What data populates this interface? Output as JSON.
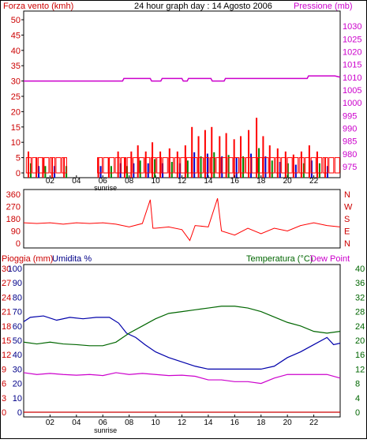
{
  "header": {
    "title": "24 hour graph day : 14 Agosto 2006",
    "left_label": "Forza vento (kmh)",
    "right_label": "Pressione (mb)"
  },
  "hour_ticks": [
    "02",
    "04",
    "06",
    "08",
    "10",
    "12",
    "14",
    "16",
    "18",
    "20",
    "22"
  ],
  "sunrise_label": "sunrise",
  "colors": {
    "wind": "#ff0000",
    "gust_blue": "#0000cc",
    "gust_green": "#008800",
    "pressure": "#cc00cc",
    "temperature": "#006600",
    "humidity": "#0000aa",
    "dewpoint": "#cc00cc",
    "rain": "#cc0000",
    "axis_left": "#000088",
    "frame": "#000000"
  },
  "chart_data": [
    {
      "type": "bar",
      "name": "wind",
      "x_unit": "hour",
      "xlim": [
        0,
        24
      ],
      "ylim": [
        0,
        50
      ],
      "yticks_left": [
        0,
        5,
        10,
        15,
        20,
        25,
        30,
        35,
        40,
        45,
        50
      ],
      "yticks_right": [
        975,
        980,
        985,
        990,
        995,
        1000,
        1005,
        1010,
        1015,
        1020,
        1025,
        1030
      ],
      "ylim_right": [
        972.5,
        1032.5
      ],
      "wind_peaks": [
        {
          "x": 0.3,
          "y": 7
        },
        {
          "x": 0.9,
          "y": 5
        },
        {
          "x": 1.4,
          "y": 5
        },
        {
          "x": 2.1,
          "y": 5
        },
        {
          "x": 3.0,
          "y": 5
        },
        {
          "x": 5.6,
          "y": 5
        },
        {
          "x": 6.4,
          "y": 5
        },
        {
          "x": 7.1,
          "y": 7
        },
        {
          "x": 7.6,
          "y": 5
        },
        {
          "x": 8.1,
          "y": 7
        },
        {
          "x": 8.6,
          "y": 9
        },
        {
          "x": 9.2,
          "y": 7
        },
        {
          "x": 9.7,
          "y": 10
        },
        {
          "x": 10.3,
          "y": 7
        },
        {
          "x": 11.0,
          "y": 8
        },
        {
          "x": 11.6,
          "y": 7
        },
        {
          "x": 12.2,
          "y": 9
        },
        {
          "x": 12.7,
          "y": 15
        },
        {
          "x": 13.2,
          "y": 12
        },
        {
          "x": 13.7,
          "y": 14
        },
        {
          "x": 14.2,
          "y": 15
        },
        {
          "x": 14.8,
          "y": 12
        },
        {
          "x": 15.3,
          "y": 13
        },
        {
          "x": 15.9,
          "y": 11
        },
        {
          "x": 16.4,
          "y": 12
        },
        {
          "x": 17.0,
          "y": 14
        },
        {
          "x": 17.6,
          "y": 18
        },
        {
          "x": 18.1,
          "y": 12
        },
        {
          "x": 18.6,
          "y": 9
        },
        {
          "x": 19.2,
          "y": 8
        },
        {
          "x": 19.8,
          "y": 7
        },
        {
          "x": 20.4,
          "y": 6
        },
        {
          "x": 21.0,
          "y": 7
        },
        {
          "x": 21.6,
          "y": 9
        },
        {
          "x": 22.2,
          "y": 7
        },
        {
          "x": 22.8,
          "y": 5
        }
      ],
      "pressure": [
        {
          "x": 0,
          "y": 1008.5
        },
        {
          "x": 7.5,
          "y": 1008.5
        },
        {
          "x": 7.6,
          "y": 1009.5
        },
        {
          "x": 9.6,
          "y": 1009.5
        },
        {
          "x": 9.7,
          "y": 1008.5
        },
        {
          "x": 10.4,
          "y": 1008.5
        },
        {
          "x": 10.5,
          "y": 1009.5
        },
        {
          "x": 12.0,
          "y": 1009.5
        },
        {
          "x": 12.1,
          "y": 1008.5
        },
        {
          "x": 12.4,
          "y": 1008.5
        },
        {
          "x": 12.5,
          "y": 1009.5
        },
        {
          "x": 14.2,
          "y": 1009.5
        },
        {
          "x": 14.3,
          "y": 1008.5
        },
        {
          "x": 15.2,
          "y": 1008.5
        },
        {
          "x": 15.3,
          "y": 1009.5
        },
        {
          "x": 21.5,
          "y": 1009.5
        },
        {
          "x": 21.6,
          "y": 1010.5
        },
        {
          "x": 23.6,
          "y": 1010.5
        },
        {
          "x": 24.0,
          "y": 1010
        }
      ]
    },
    {
      "type": "line",
      "name": "direction",
      "xlim": [
        0,
        24
      ],
      "ylim": [
        0,
        360
      ],
      "yticks_left": [
        0,
        90,
        180,
        270,
        360
      ],
      "yticks_right": [
        "N",
        "W",
        "S",
        "E",
        "N"
      ],
      "points": [
        {
          "x": 0,
          "y": 150
        },
        {
          "x": 1,
          "y": 145
        },
        {
          "x": 2,
          "y": 150
        },
        {
          "x": 3,
          "y": 140
        },
        {
          "x": 4,
          "y": 150
        },
        {
          "x": 5,
          "y": 145
        },
        {
          "x": 6,
          "y": 150
        },
        {
          "x": 7,
          "y": 140
        },
        {
          "x": 8,
          "y": 120
        },
        {
          "x": 9,
          "y": 145
        },
        {
          "x": 9.6,
          "y": 320
        },
        {
          "x": 9.8,
          "y": 110
        },
        {
          "x": 10,
          "y": 110
        },
        {
          "x": 11,
          "y": 120
        },
        {
          "x": 12,
          "y": 100
        },
        {
          "x": 12.6,
          "y": 20
        },
        {
          "x": 13,
          "y": 130
        },
        {
          "x": 14,
          "y": 120
        },
        {
          "x": 14.7,
          "y": 330
        },
        {
          "x": 15,
          "y": 90
        },
        {
          "x": 16,
          "y": 60
        },
        {
          "x": 17,
          "y": 110
        },
        {
          "x": 18,
          "y": 70
        },
        {
          "x": 19,
          "y": 110
        },
        {
          "x": 20,
          "y": 90
        },
        {
          "x": 21,
          "y": 130
        },
        {
          "x": 22,
          "y": 150
        },
        {
          "x": 23,
          "y": 130
        },
        {
          "x": 24,
          "y": 120
        }
      ]
    },
    {
      "type": "line",
      "name": "climate",
      "xlim": [
        0,
        24
      ],
      "left_labels": {
        "rain": "Pioggia (mm)",
        "humidity": "Umidita %"
      },
      "right_labels": {
        "temperature": "Temperatura (°C)",
        "dewpoint": "Dew Point"
      },
      "rain_ticks": [
        0,
        3,
        6,
        9,
        12,
        15,
        18,
        21,
        24,
        27,
        30
      ],
      "humidity_ticks": [
        0,
        10,
        20,
        30,
        40,
        50,
        60,
        70,
        80,
        90,
        100
      ],
      "temp_ticks": [
        0,
        4,
        8,
        12,
        16,
        20,
        24,
        28,
        32,
        36,
        40
      ],
      "rain": [
        {
          "x": 0,
          "y": 0
        },
        {
          "x": 24,
          "y": 0
        }
      ],
      "humidity": [
        {
          "x": 0,
          "y": 63
        },
        {
          "x": 0.5,
          "y": 66
        },
        {
          "x": 1.5,
          "y": 67
        },
        {
          "x": 2.5,
          "y": 64
        },
        {
          "x": 3.5,
          "y": 66
        },
        {
          "x": 4.5,
          "y": 65
        },
        {
          "x": 5.5,
          "y": 66
        },
        {
          "x": 6.5,
          "y": 66
        },
        {
          "x": 7.2,
          "y": 62
        },
        {
          "x": 7.8,
          "y": 55
        },
        {
          "x": 8.5,
          "y": 52
        },
        {
          "x": 9.2,
          "y": 47
        },
        {
          "x": 10,
          "y": 42
        },
        {
          "x": 11,
          "y": 38
        },
        {
          "x": 12,
          "y": 35
        },
        {
          "x": 13,
          "y": 32
        },
        {
          "x": 14,
          "y": 30
        },
        {
          "x": 15,
          "y": 30
        },
        {
          "x": 16,
          "y": 30
        },
        {
          "x": 17,
          "y": 30
        },
        {
          "x": 18,
          "y": 30
        },
        {
          "x": 19,
          "y": 32
        },
        {
          "x": 20,
          "y": 38
        },
        {
          "x": 21,
          "y": 42
        },
        {
          "x": 22,
          "y": 47
        },
        {
          "x": 23,
          "y": 52
        },
        {
          "x": 23.5,
          "y": 47
        },
        {
          "x": 24,
          "y": 48
        }
      ],
      "temperature": [
        {
          "x": 0,
          "y": 19.5
        },
        {
          "x": 1,
          "y": 19.0
        },
        {
          "x": 2,
          "y": 19.5
        },
        {
          "x": 3,
          "y": 19.0
        },
        {
          "x": 4,
          "y": 18.8
        },
        {
          "x": 5,
          "y": 18.5
        },
        {
          "x": 6,
          "y": 18.5
        },
        {
          "x": 7,
          "y": 19.5
        },
        {
          "x": 8,
          "y": 22.0
        },
        {
          "x": 9,
          "y": 24.0
        },
        {
          "x": 10,
          "y": 26.0
        },
        {
          "x": 11,
          "y": 27.5
        },
        {
          "x": 12,
          "y": 28.0
        },
        {
          "x": 13,
          "y": 28.5
        },
        {
          "x": 14,
          "y": 29.0
        },
        {
          "x": 15,
          "y": 29.5
        },
        {
          "x": 16,
          "y": 29.5
        },
        {
          "x": 17,
          "y": 29.0
        },
        {
          "x": 18,
          "y": 28.0
        },
        {
          "x": 19,
          "y": 26.5
        },
        {
          "x": 20,
          "y": 25.0
        },
        {
          "x": 21,
          "y": 24.0
        },
        {
          "x": 22,
          "y": 22.5
        },
        {
          "x": 23,
          "y": 22.0
        },
        {
          "x": 24,
          "y": 22.5
        }
      ],
      "dewpoint": [
        {
          "x": 0,
          "y": 11.0
        },
        {
          "x": 1,
          "y": 10.5
        },
        {
          "x": 2,
          "y": 10.8
        },
        {
          "x": 3,
          "y": 10.5
        },
        {
          "x": 4,
          "y": 10.3
        },
        {
          "x": 5,
          "y": 10.5
        },
        {
          "x": 6,
          "y": 10.2
        },
        {
          "x": 7,
          "y": 11.0
        },
        {
          "x": 8,
          "y": 10.5
        },
        {
          "x": 9,
          "y": 10.8
        },
        {
          "x": 10,
          "y": 10.5
        },
        {
          "x": 11,
          "y": 10.2
        },
        {
          "x": 12,
          "y": 10.3
        },
        {
          "x": 13,
          "y": 10.0
        },
        {
          "x": 14,
          "y": 9.0
        },
        {
          "x": 15,
          "y": 9.0
        },
        {
          "x": 16,
          "y": 8.5
        },
        {
          "x": 17,
          "y": 8.5
        },
        {
          "x": 18,
          "y": 8.0
        },
        {
          "x": 19,
          "y": 9.5
        },
        {
          "x": 20,
          "y": 10.5
        },
        {
          "x": 21,
          "y": 10.5
        },
        {
          "x": 22,
          "y": 10.5
        },
        {
          "x": 23,
          "y": 10.5
        },
        {
          "x": 24,
          "y": 9.5
        }
      ]
    }
  ]
}
